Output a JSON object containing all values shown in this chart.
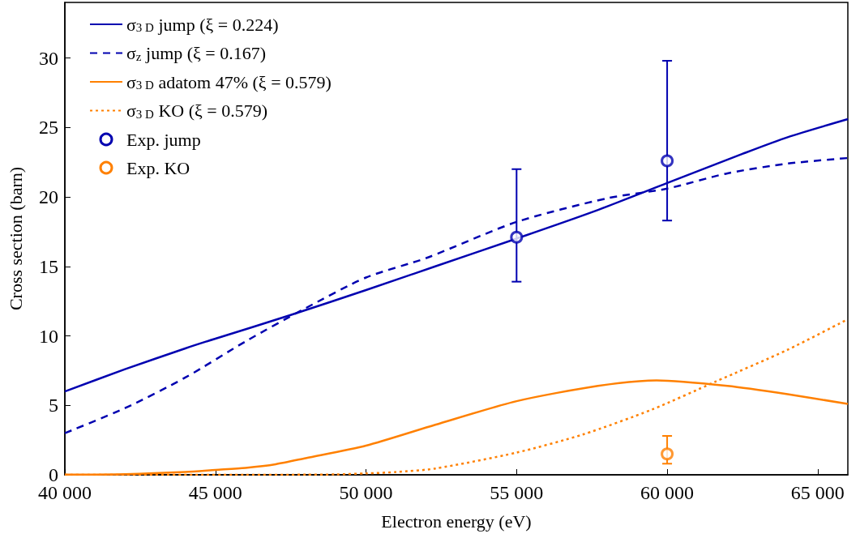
{
  "chart_data": {
    "type": "line",
    "xlabel": "Electron energy (eV)",
    "ylabel": "Cross section (barn)",
    "xlim": [
      40000,
      66000
    ],
    "xticks": [
      {
        "value": 40000,
        "label": "40 000"
      },
      {
        "value": 45000,
        "label": "45 000"
      },
      {
        "value": 50000,
        "label": "50 000"
      },
      {
        "value": 55000,
        "label": "55 000"
      },
      {
        "value": 60000,
        "label": "60 000"
      },
      {
        "value": 65000,
        "label": "65 000"
      }
    ],
    "ylim": [
      0,
      34
    ],
    "yticks": [
      0,
      5,
      10,
      15,
      20,
      25,
      30
    ],
    "grid": false,
    "legend": "top left",
    "series": [
      {
        "name": "σ$_{3 D}$ jump (ξ = 0.224)",
        "line_style": "solid",
        "marker": "none",
        "color": "#0000b0",
        "x": [
          40000,
          42000,
          44000,
          45000,
          47500,
          50000,
          52300,
          55000,
          57500,
          60000,
          62500,
          64000,
          66000
        ],
        "values": [
          6.0,
          7.6,
          9.1,
          9.8,
          11.5,
          13.3,
          15.0,
          17.0,
          18.9,
          21.0,
          23.1,
          24.3,
          25.6
        ]
      },
      {
        "name": "σ$_{z}$ jump (ξ = 0.167)",
        "line_style": "dashed",
        "marker": "none",
        "color": "#0000b0",
        "x": [
          40000,
          42000,
          44000,
          46000,
          48000,
          50000,
          52000,
          55000,
          58000,
          60000,
          62000,
          64000,
          66000
        ],
        "values": [
          3.0,
          4.8,
          7.0,
          9.6,
          12.0,
          14.2,
          15.6,
          18.2,
          19.9,
          20.6,
          21.7,
          22.4,
          22.8
        ]
      },
      {
        "name": "σ$_{3 D}$ adatom 47% (ξ = 0.579)",
        "line_style": "solid",
        "marker": "none",
        "color": "#ff8000",
        "x": [
          40000,
          42000,
          44000,
          45000,
          46000,
          47000,
          48000,
          50000,
          52300,
          55000,
          57700,
          59650,
          62000,
          64000,
          66000
        ],
        "values": [
          0.02,
          0.05,
          0.2,
          0.35,
          0.5,
          0.76,
          1.2,
          2.1,
          3.6,
          5.3,
          6.4,
          6.8,
          6.4,
          5.8,
          5.1
        ]
      },
      {
        "name": "σ$_{3 D}$ KO (ξ = 0.579)",
        "line_style": "dotted",
        "marker": "none",
        "color": "#ff8000",
        "x": [
          40000,
          46000,
          48000,
          49000,
          50000,
          51000,
          52300,
          55000,
          57200,
          59500,
          61600,
          64000,
          66000
        ],
        "values": [
          0,
          0,
          0.01,
          0.03,
          0.1,
          0.2,
          0.45,
          1.6,
          2.9,
          4.7,
          6.7,
          9.0,
          11.2
        ]
      },
      {
        "name": "Exp. jump",
        "type": "scatter",
        "marker": "circle",
        "color": "#0000b0",
        "x": [
          55000,
          60000
        ],
        "values": [
          17.1,
          22.6
        ],
        "errors": [
          [
            13.9,
            22.0
          ],
          [
            18.3,
            29.8
          ]
        ]
      },
      {
        "name": "Exp. KO",
        "type": "scatter",
        "marker": "circle",
        "color": "#ff8000",
        "x": [
          60000
        ],
        "values": [
          1.5
        ],
        "errors": [
          [
            0.8,
            2.8
          ]
        ]
      }
    ]
  }
}
